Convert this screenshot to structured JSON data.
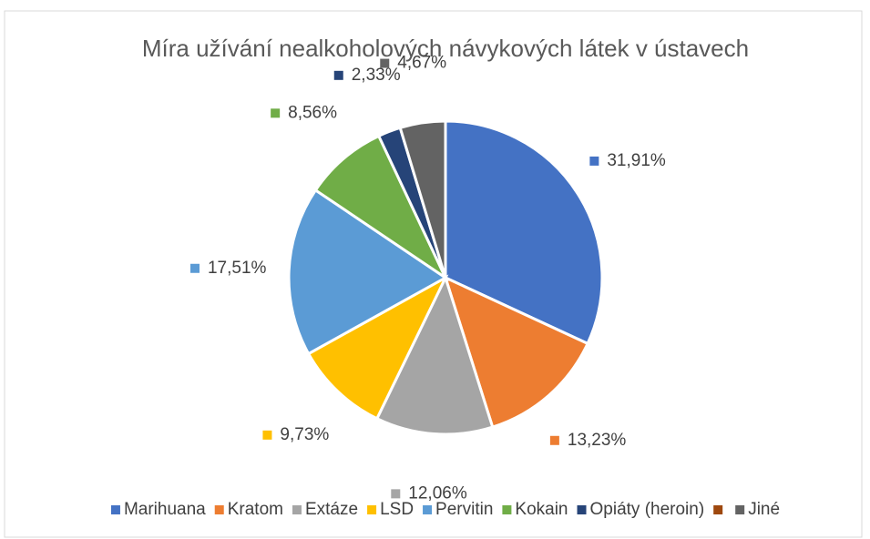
{
  "chart_data": {
    "type": "pie",
    "title": "Míra užívání nealkoholových návykových látek v ústavech",
    "categories": [
      "Marihuana",
      "Kratom",
      "Extáze",
      "LSD",
      "Pervitin",
      "Kokain",
      "Opiáty (heroin)",
      null,
      "Jiné"
    ],
    "values": [
      31.91,
      13.23,
      12.06,
      9.73,
      17.51,
      8.56,
      2.33,
      0,
      4.67
    ],
    "value_labels": [
      "31,91%",
      "13,23%",
      "12,06%",
      "9,73%",
      "17,51%",
      "8,56%",
      "2,33%",
      null,
      "4,67%"
    ],
    "colors": [
      "#4472c4",
      "#ed7d31",
      "#a5a5a5",
      "#ffc000",
      "#5b9bd5",
      "#70ad47",
      "#264478",
      "#9e480e",
      "#636363"
    ],
    "legend": "bottom"
  }
}
